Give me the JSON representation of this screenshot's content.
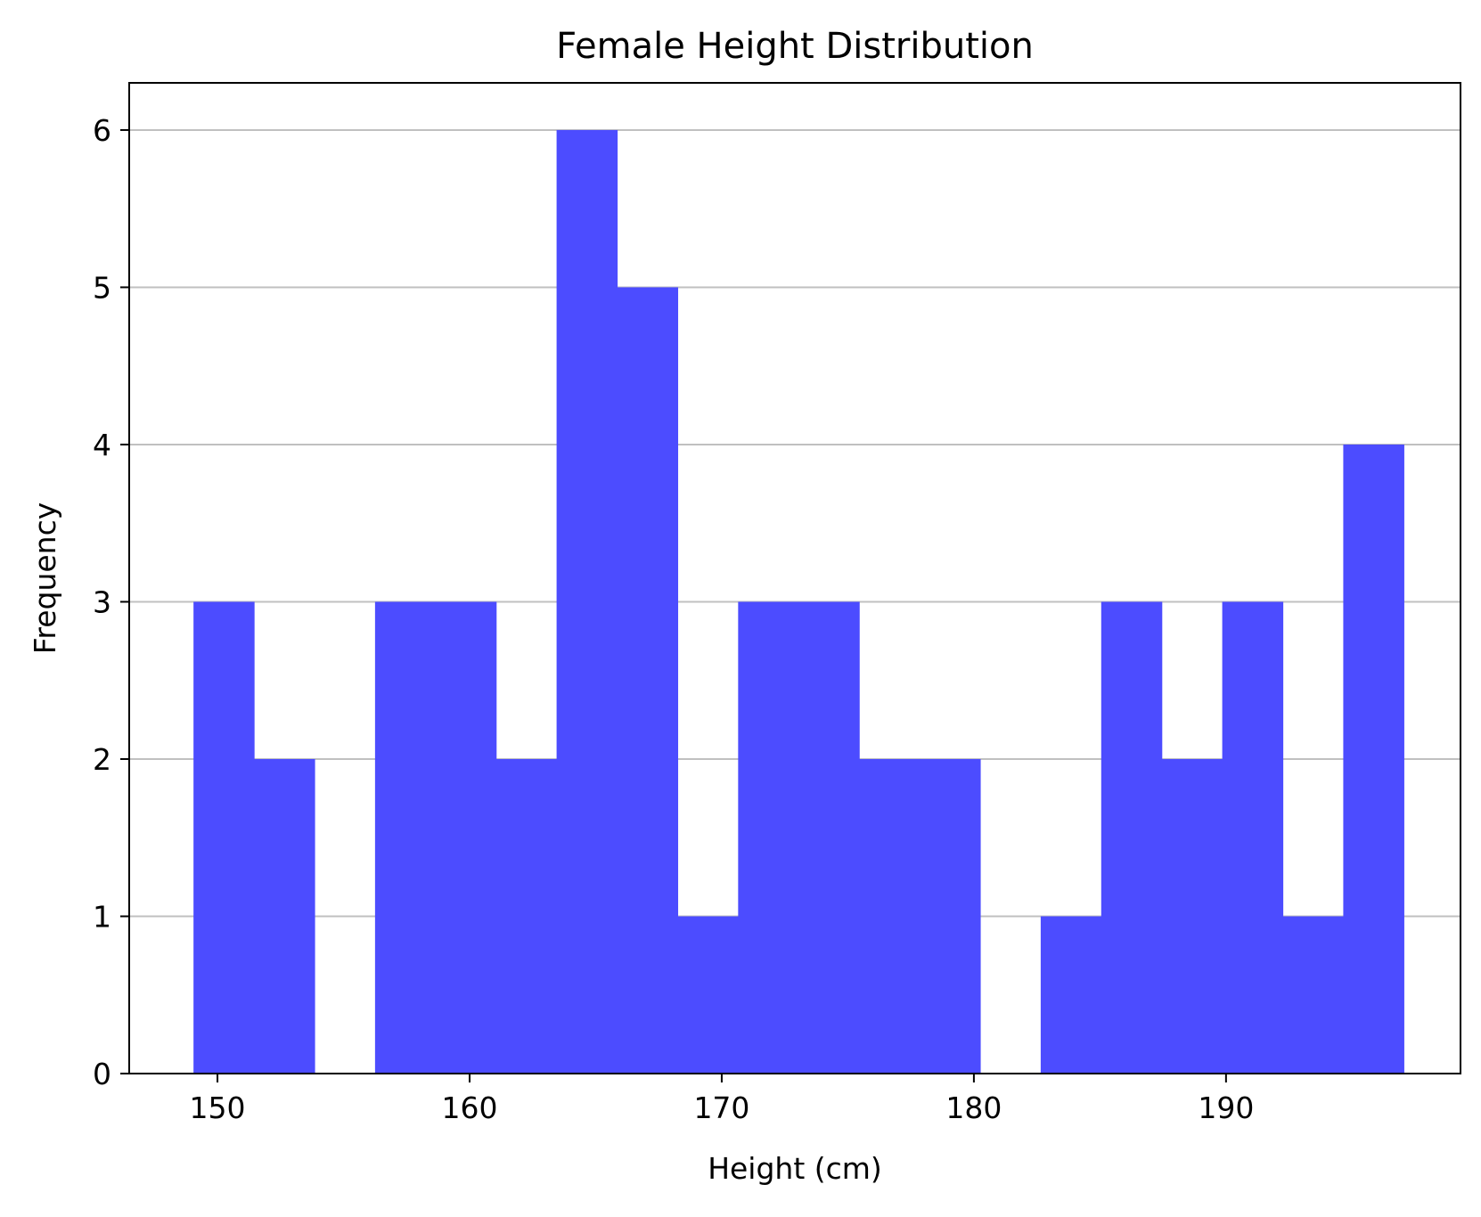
{
  "chart_data": {
    "type": "bar",
    "title": "Female Height Distribution",
    "xlabel": "Height (cm)",
    "ylabel": "Frequency",
    "xlim": [
      146.5,
      199.3
    ],
    "ylim": [
      0,
      6.3
    ],
    "x_ticks": [
      150,
      160,
      170,
      180,
      190
    ],
    "x_tick_labels": [
      "150",
      "160",
      "170",
      "180",
      "190"
    ],
    "y_ticks": [
      0,
      1,
      2,
      3,
      4,
      5,
      6
    ],
    "y_tick_labels": [
      "0",
      "1",
      "2",
      "3",
      "4",
      "5",
      "6"
    ],
    "grid": {
      "y": true,
      "x": false
    },
    "bar_color": "#4c4cff",
    "grid_color": "#c0c0c0",
    "bins": [
      {
        "x0": 149.05,
        "x1": 151.45,
        "count": 3
      },
      {
        "x0": 151.45,
        "x1": 153.85,
        "count": 2
      },
      {
        "x0": 153.85,
        "x1": 156.25,
        "count": 0
      },
      {
        "x0": 156.25,
        "x1": 158.65,
        "count": 3
      },
      {
        "x0": 158.65,
        "x1": 161.05,
        "count": 3
      },
      {
        "x0": 161.05,
        "x1": 163.45,
        "count": 2
      },
      {
        "x0": 163.45,
        "x1": 165.85,
        "count": 6
      },
      {
        "x0": 165.85,
        "x1": 168.25,
        "count": 5
      },
      {
        "x0": 168.25,
        "x1": 170.65,
        "count": 1
      },
      {
        "x0": 170.65,
        "x1": 173.05,
        "count": 3
      },
      {
        "x0": 173.05,
        "x1": 175.45,
        "count": 3
      },
      {
        "x0": 175.45,
        "x1": 177.85,
        "count": 2
      },
      {
        "x0": 177.85,
        "x1": 180.25,
        "count": 2
      },
      {
        "x0": 180.25,
        "x1": 182.65,
        "count": 0
      },
      {
        "x0": 182.65,
        "x1": 185.05,
        "count": 1
      },
      {
        "x0": 185.05,
        "x1": 187.45,
        "count": 3
      },
      {
        "x0": 187.45,
        "x1": 189.85,
        "count": 2
      },
      {
        "x0": 189.85,
        "x1": 192.25,
        "count": 3
      },
      {
        "x0": 192.25,
        "x1": 194.65,
        "count": 1
      },
      {
        "x0": 194.65,
        "x1": 197.05,
        "count": 4
      }
    ]
  }
}
